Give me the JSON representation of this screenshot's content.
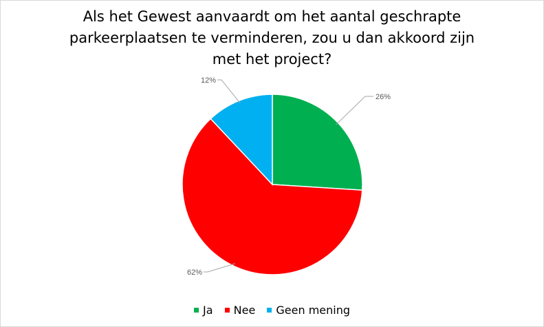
{
  "chart_data": {
    "type": "pie",
    "title_lines": [
      "Als het Gewest aanvaardt om het aantal geschrapte",
      "parkeerplaatsen te verminderen, zou u dan akkoord zijn",
      "met het project?"
    ],
    "categories": [
      "Ja",
      "Nee",
      "Geen mening"
    ],
    "values": [
      26,
      62,
      12
    ],
    "data_labels": [
      "26%",
      "62%",
      "12%"
    ],
    "colors": [
      "#00B050",
      "#FF0000",
      "#00B0F0"
    ],
    "legend_position": "bottom",
    "start_angle": "top, clockwise"
  }
}
